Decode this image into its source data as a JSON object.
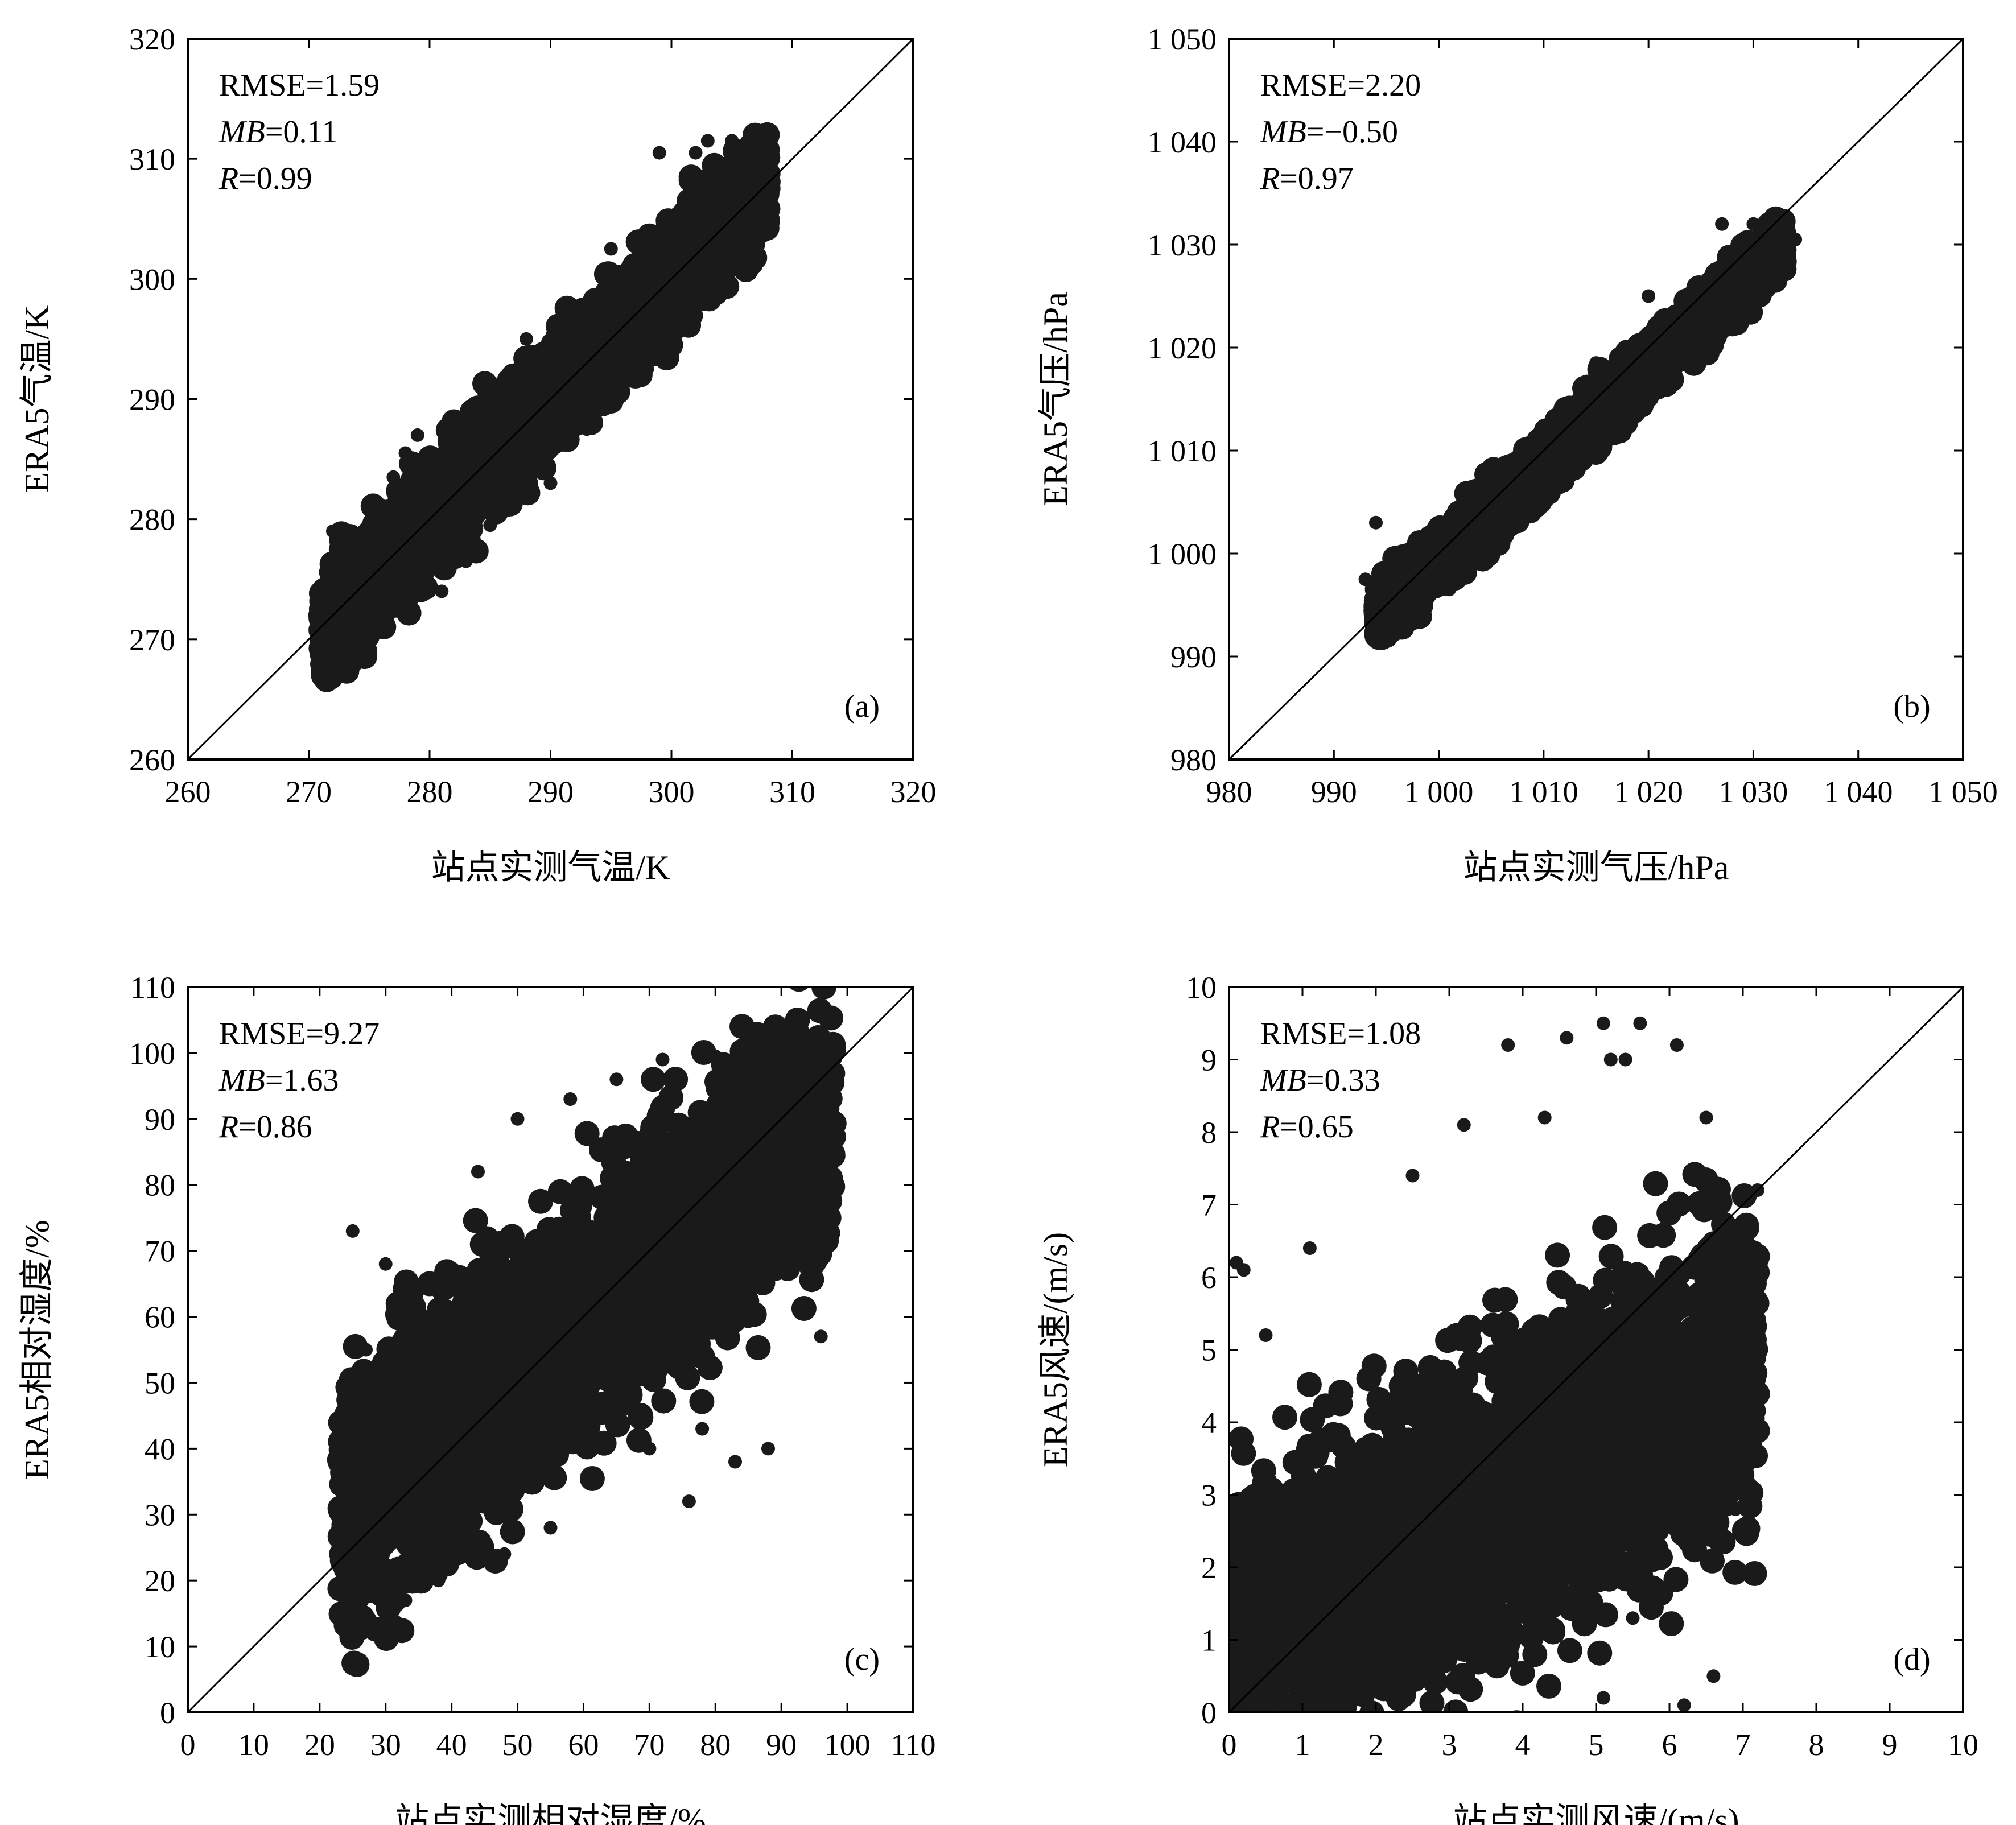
{
  "chart_data": [
    {
      "type": "scatter",
      "panel": "(a)",
      "xlabel": "站点实测气温/K",
      "ylabel": "ERA5气温/K",
      "xlim": [
        260,
        320
      ],
      "ylim": [
        260,
        320
      ],
      "xticks": [
        "260",
        "270",
        "280",
        "290",
        "300",
        "310",
        "320"
      ],
      "yticks": [
        "260",
        "270",
        "280",
        "290",
        "300",
        "310",
        "320"
      ],
      "stats": {
        "rmse": "RMSE=1.59",
        "mb_label": "MB",
        "mb_value": "=0.11",
        "r_label": "R",
        "r_value": "=0.99"
      },
      "reference_line": "1:1",
      "cloud": {
        "x_range": [
          271,
          308
        ],
        "slope": 1.0,
        "intercept": 0.1,
        "spread": 2.3
      },
      "outliers": [
        [
          273,
          269
        ],
        [
          274,
          270.5
        ],
        [
          276,
          279.5
        ],
        [
          278,
          285.5
        ],
        [
          281,
          274
        ],
        [
          283,
          276.5
        ],
        [
          285,
          289
        ],
        [
          288,
          295
        ],
        [
          290,
          283
        ],
        [
          292,
          297
        ],
        [
          295,
          302.5
        ],
        [
          298,
          292.5
        ],
        [
          300,
          305
        ],
        [
          302,
          310.5
        ],
        [
          303,
          311.5
        ],
        [
          305,
          311.5
        ],
        [
          306,
          310.5
        ],
        [
          304,
          299
        ],
        [
          300,
          295.5
        ],
        [
          296,
          300.5
        ],
        [
          293,
          287.5
        ],
        [
          279,
          287
        ],
        [
          277,
          283.5
        ],
        [
          272,
          279
        ],
        [
          285,
          279.5
        ],
        [
          299,
          310.5
        ]
      ]
    },
    {
      "type": "scatter",
      "panel": "(b)",
      "xlabel": "站点实测气压/hPa",
      "ylabel": "ERA5气压/hPa",
      "xlim": [
        980,
        1050
      ],
      "ylim": [
        980,
        1050
      ],
      "xticks": [
        "980",
        "990",
        "1 000",
        "1 010",
        "1 020",
        "1 030",
        "1 040",
        "1 050"
      ],
      "yticks": [
        "980",
        "990",
        "1 000",
        "1 010",
        "1 020",
        "1 030",
        "1 040",
        "1 050"
      ],
      "stats": {
        "rmse": "RMSE=2.20",
        "mb_label": "MB",
        "mb_value": "=−0.50",
        "r_label": "R",
        "r_value": "=0.97"
      },
      "reference_line": "1:1",
      "cloud": {
        "x_range": [
          994,
          1033
        ],
        "slope": 0.93,
        "intercept": 69.5,
        "spread": 1.4
      },
      "outliers": [
        [
          994,
          1003
        ],
        [
          993,
          997.5
        ],
        [
          995,
          993
        ],
        [
          1001,
          996.5
        ],
        [
          1027,
          1032
        ],
        [
          1030,
          1032
        ],
        [
          1034,
          1030.5
        ],
        [
          1032,
          1026
        ],
        [
          1015,
          1018.5
        ],
        [
          1020,
          1025
        ],
        [
          1006,
          1003
        ],
        [
          1011,
          1007.5
        ]
      ]
    },
    {
      "type": "scatter",
      "panel": "(c)",
      "xlabel": "站点实测相对湿度/%",
      "ylabel": "ERA5相对湿度/%",
      "xlim": [
        0,
        110
      ],
      "ylim": [
        0,
        110
      ],
      "xticks": [
        "0",
        "10",
        "20",
        "30",
        "40",
        "50",
        "60",
        "70",
        "80",
        "90",
        "100",
        "110"
      ],
      "yticks": [
        "0",
        "10",
        "20",
        "30",
        "40",
        "50",
        "60",
        "70",
        "80",
        "90",
        "100",
        "110"
      ],
      "stats": {
        "rmse": "RMSE=9.27",
        "mb_label": "MB",
        "mb_value": "=1.63",
        "r_label": "R",
        "r_value": "=0.86"
      },
      "reference_line": "1:1",
      "cloud": {
        "x_range": [
          23,
          98
        ],
        "slope": 0.8,
        "intercept": 12,
        "spread": 10
      },
      "outliers": [
        [
          25,
          15
        ],
        [
          27,
          55
        ],
        [
          24,
          45
        ],
        [
          25,
          73
        ],
        [
          30,
          68
        ],
        [
          33,
          17
        ],
        [
          38,
          20
        ],
        [
          44,
          82
        ],
        [
          50,
          90
        ],
        [
          58,
          93
        ],
        [
          65,
          96
        ],
        [
          72,
          99
        ],
        [
          76,
          32
        ],
        [
          78,
          43
        ],
        [
          83,
          38
        ],
        [
          86,
          55
        ],
        [
          88,
          40
        ],
        [
          96,
          57
        ],
        [
          70,
          40
        ],
        [
          62,
          35
        ],
        [
          55,
          28
        ],
        [
          48,
          24
        ],
        [
          80,
          99.5
        ],
        [
          92,
          99.5
        ]
      ]
    },
    {
      "type": "scatter",
      "panel": "(d)",
      "xlabel": "站点实测风速/(m/s)",
      "ylabel": "ERA5风速/(m/s)",
      "xlim": [
        0,
        10
      ],
      "ylim": [
        0,
        10
      ],
      "xticks": [
        "0",
        "1",
        "2",
        "3",
        "4",
        "5",
        "6",
        "7",
        "8",
        "9",
        "10"
      ],
      "yticks": [
        "0",
        "1",
        "2",
        "3",
        "4",
        "5",
        "6",
        "7",
        "8",
        "9",
        "10"
      ],
      "stats": {
        "rmse": "RMSE=1.08",
        "mb_label": "MB",
        "mb_value": "=0.33",
        "r_label": "R",
        "r_value": "=0.65"
      },
      "reference_line": "1:1",
      "cloud": {
        "x_range": [
          0,
          7.2
        ],
        "slope": 0.55,
        "intercept": 0.9,
        "spread": 1.1
      },
      "outliers": [
        [
          0.1,
          6.2
        ],
        [
          0.2,
          6.1
        ],
        [
          3.8,
          9.2
        ],
        [
          4.6,
          9.3
        ],
        [
          5.1,
          9.5
        ],
        [
          5.6,
          9.5
        ],
        [
          5.2,
          9.0
        ],
        [
          6.1,
          9.2
        ],
        [
          5.4,
          9.0
        ],
        [
          6.5,
          8.2
        ],
        [
          7.2,
          7.2
        ],
        [
          6.2,
          0.1
        ],
        [
          5.1,
          0.2
        ],
        [
          6.6,
          0.5
        ],
        [
          5.5,
          1.3
        ],
        [
          3.2,
          8.1
        ],
        [
          2.5,
          7.4
        ],
        [
          1.1,
          6.4
        ],
        [
          0.5,
          5.2
        ],
        [
          4.3,
          8.2
        ],
        [
          6.0,
          2.8
        ],
        [
          7.0,
          3.0
        ],
        [
          6.9,
          2.8
        ]
      ]
    }
  ]
}
